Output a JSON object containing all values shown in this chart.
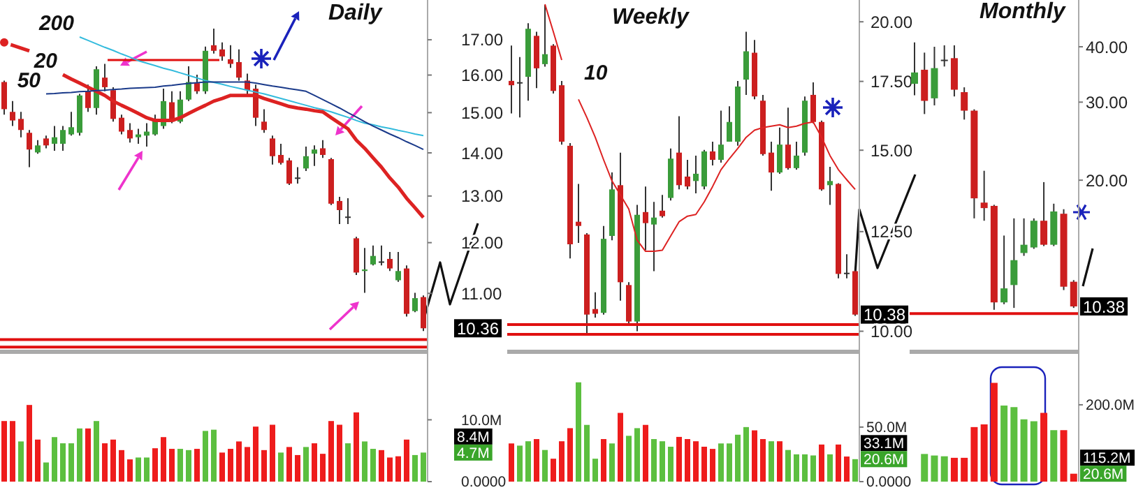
{
  "chart_data": [
    {
      "type": "candlestick",
      "title": "Daily",
      "log": "y",
      "tick_labels": "y",
      "categories": [
        null,
        null,
        null,
        null,
        null,
        null,
        null,
        null,
        null,
        null,
        null,
        null,
        null,
        null,
        null,
        null,
        null,
        null,
        null,
        null,
        null,
        null,
        null,
        null,
        null,
        null,
        null,
        null,
        null,
        null,
        null,
        null,
        null,
        null,
        null,
        null,
        null,
        null,
        null,
        null,
        null,
        null,
        null,
        null,
        null,
        null,
        null,
        null,
        null,
        null,
        null
      ],
      "ohlc": [
        [
          15.81,
          15.85,
          14.95,
          15.09
        ],
        [
          15.02,
          15.3,
          14.66,
          14.8
        ],
        [
          14.84,
          15.02,
          14.38,
          14.56
        ],
        [
          14.49,
          14.56,
          13.66,
          14.08
        ],
        [
          14.01,
          14.31,
          13.98,
          14.18
        ],
        [
          14.35,
          14.42,
          14.11,
          14.18
        ],
        [
          14.22,
          14.66,
          14.05,
          14.38
        ],
        [
          14.22,
          14.66,
          14.05,
          14.56
        ],
        [
          14.45,
          15.02,
          14.42,
          14.63
        ],
        [
          14.49,
          15.49,
          14.42,
          15.45
        ],
        [
          15.56,
          15.74,
          15.02,
          15.12
        ],
        [
          15.12,
          16.24,
          14.95,
          16.16
        ],
        [
          15.93,
          16.31,
          15.56,
          15.67
        ],
        [
          15.59,
          15.67,
          14.77,
          14.84
        ],
        [
          14.87,
          14.95,
          14.45,
          14.52
        ],
        [
          14.56,
          14.73,
          14.25,
          14.35
        ],
        [
          14.38,
          14.59,
          14.22,
          14.45
        ],
        [
          14.42,
          14.73,
          14.15,
          14.52
        ],
        [
          14.45,
          14.95,
          14.42,
          14.8
        ],
        [
          14.66,
          15.63,
          14.59,
          15.3
        ],
        [
          15.27,
          15.56,
          14.73,
          14.77
        ],
        [
          14.77,
          15.56,
          14.73,
          15.34
        ],
        [
          15.34,
          16.24,
          15.3,
          15.81
        ],
        [
          15.78,
          16.01,
          15.49,
          15.56
        ],
        [
          15.56,
          16.8,
          15.49,
          16.68
        ],
        [
          16.84,
          17.33,
          16.6,
          16.68
        ],
        [
          16.72,
          16.92,
          16.4,
          16.52
        ],
        [
          16.44,
          16.84,
          16.2,
          16.31
        ],
        [
          16.36,
          16.72,
          15.85,
          15.93
        ],
        [
          15.85,
          16.04,
          15.45,
          15.59
        ],
        [
          15.63,
          15.74,
          14.66,
          14.87
        ],
        [
          14.77,
          15.09,
          14.49,
          14.56
        ],
        [
          14.35,
          14.42,
          13.72,
          13.92
        ],
        [
          13.95,
          14.22,
          13.72,
          13.76
        ],
        [
          13.82,
          13.88,
          13.25,
          13.28
        ],
        [
          13.42,
          13.66,
          13.28,
          13.41
        ],
        [
          13.63,
          14.15,
          13.57,
          13.92
        ],
        [
          13.98,
          14.18,
          13.69,
          14.08
        ],
        [
          14.11,
          14.31,
          13.88,
          13.95
        ],
        [
          13.85,
          13.88,
          12.8,
          12.83
        ],
        [
          12.89,
          12.98,
          12.39,
          12.69
        ],
        [
          12.55,
          12.95,
          12.39,
          12.54
        ],
        [
          12.09,
          12.12,
          11.35,
          11.4
        ],
        [
          11.43,
          11.89,
          11.01,
          11.46
        ],
        [
          11.56,
          11.94,
          11.54,
          11.73
        ],
        [
          11.62,
          11.94,
          11.54,
          11.62
        ],
        [
          11.67,
          11.81,
          11.43,
          11.48
        ],
        [
          11.25,
          11.81,
          11.22,
          11.43
        ],
        [
          11.48,
          11.54,
          10.57,
          10.62
        ],
        [
          10.67,
          11.01,
          10.65,
          10.91
        ],
        [
          10.93,
          10.96,
          10.31,
          10.36
        ]
      ],
      "colors": [
        "#cc1f1f",
        "#cc1f1f",
        "#cc1f1f",
        "#cc1f1f",
        "#3a9c3a",
        "#cc1f1f",
        "#3a9c3a",
        "#3a9c3a",
        "#3a9c3a",
        "#3a9c3a",
        "#cc1f1f",
        "#3a9c3a",
        "#cc1f1f",
        "#cc1f1f",
        "#cc1f1f",
        "#cc1f1f",
        "#3a9c3a",
        "#3a9c3a",
        "#3a9c3a",
        "#3a9c3a",
        "#cc1f1f",
        "#3a9c3a",
        "#3a9c3a",
        "#cc1f1f",
        "#3a9c3a",
        "#cc1f1f",
        "#cc1f1f",
        "#cc1f1f",
        "#cc1f1f",
        "#cc1f1f",
        "#cc1f1f",
        "#cc1f1f",
        "#cc1f1f",
        "#cc1f1f",
        "#cc1f1f",
        "#333333",
        "#3a9c3a",
        "#3a9c3a",
        "#cc1f1f",
        "#cc1f1f",
        "#cc1f1f",
        "#333333",
        "#cc1f1f",
        "#3a9c3a",
        "#3a9c3a",
        "#333333",
        "#cc1f1f",
        "#3a9c3a",
        "#cc1f1f",
        "#3a9c3a",
        "#cc1f1f"
      ],
      "series": [
        {
          "type": "line",
          "name": "200",
          "color": "#33bbdd",
          "values": [
            null,
            null,
            null,
            null,
            null,
            null,
            null,
            null,
            null,
            17.08,
            16.98,
            16.88,
            16.78,
            16.69,
            16.59,
            16.5,
            16.4,
            16.33,
            16.26,
            16.19,
            16.13,
            16.06,
            15.99,
            15.92,
            15.85,
            15.8,
            15.75,
            15.69,
            15.64,
            15.59,
            15.54,
            15.49,
            15.43,
            15.37,
            15.31,
            15.25,
            15.19,
            15.13,
            15.08,
            15.02,
            14.95,
            14.88,
            14.8,
            14.73,
            14.69,
            14.64,
            14.6,
            14.55,
            14.51,
            14.46,
            14.42
          ]
        },
        {
          "type": "line",
          "name": "20",
          "color": "#dd2222",
          "values": [
            16.92,
            16.84,
            16.76,
            16.68,
            null,
            null,
            null,
            16.01,
            15.89,
            15.78,
            15.67,
            15.56,
            15.45,
            15.3,
            15.19,
            15.09,
            14.98,
            14.87,
            14.8,
            14.8,
            14.8,
            14.87,
            14.98,
            15.09,
            15.19,
            15.3,
            15.37,
            15.45,
            15.45,
            15.45,
            15.45,
            15.37,
            15.3,
            15.23,
            15.16,
            15.12,
            15.09,
            15.05,
            15.02,
            14.87,
            14.73,
            14.59,
            14.31,
            14.11,
            13.88,
            13.66,
            13.41,
            13.2,
            12.95,
            12.74,
            12.53
          ]
        },
        {
          "type": "line",
          "name": "50",
          "color": "#1a3a8a",
          "values": [
            null,
            null,
            null,
            null,
            null,
            15.49,
            15.5,
            15.52,
            15.53,
            15.55,
            15.56,
            15.58,
            15.59,
            15.61,
            15.62,
            15.64,
            15.65,
            15.66,
            15.67,
            15.7,
            15.72,
            15.75,
            15.77,
            15.79,
            15.81,
            15.81,
            15.81,
            15.81,
            15.81,
            15.81,
            15.78,
            15.74,
            15.7,
            15.67,
            15.63,
            15.6,
            15.56,
            15.45,
            15.34,
            15.23,
            15.12,
            15.0,
            14.89,
            14.77,
            14.66,
            14.56,
            14.46,
            14.37,
            14.27,
            14.18,
            14.08
          ]
        }
      ],
      "ylim": [
        9.95,
        18.2
      ],
      "yticks": [
        {
          "value": 11,
          "label": "11.00"
        },
        {
          "value": 12,
          "label": "12.00"
        },
        {
          "value": 13,
          "label": "13.00"
        },
        {
          "value": 14,
          "label": "14.00"
        },
        {
          "value": 15,
          "label": "15.00"
        },
        {
          "value": 16,
          "label": "16.00"
        },
        {
          "value": 17,
          "label": "17.00"
        }
      ],
      "ref_lines": [
        {
          "axis": "y",
          "value": 10.16,
          "color": "#e01010"
        },
        {
          "axis": "y",
          "value": 10.03,
          "color": "#e01010"
        }
      ],
      "annotations": [
        "10.36"
      ]
    },
    {
      "type": "candlestick",
      "title": "Weekly",
      "log": "y",
      "tick_labels": "y",
      "categories": [
        null,
        null,
        null,
        null,
        null,
        null,
        null,
        null,
        null,
        null,
        null,
        null,
        null,
        null,
        null,
        null,
        null,
        null,
        null,
        null,
        null,
        null,
        null,
        null,
        null,
        null,
        null,
        null,
        null,
        null,
        null,
        null,
        null,
        null,
        null,
        null,
        null,
        null,
        null,
        null,
        null,
        null
      ],
      "ohlc": [
        [
          17.52,
          18.96,
          16.29,
          17.35
        ],
        [
          17.47,
          18.48,
          16.14,
          17.46
        ],
        [
          17.68,
          19.94,
          16.76,
          19.69
        ],
        [
          19.38,
          19.56,
          17.24,
          18.02
        ],
        [
          18.19,
          20.77,
          18.09,
          18.6
        ],
        [
          18.96,
          19.02,
          17.03,
          17.13
        ],
        [
          17.35,
          17.52,
          15.19,
          15.29
        ],
        [
          15.15,
          15.24,
          11.77,
          12.15
        ],
        [
          12.78,
          13.91,
          12.19,
          12.66
        ],
        [
          12.42,
          12.46,
          9.9,
          10.38
        ],
        [
          10.51,
          10.91,
          10.31,
          10.4
        ],
        [
          10.42,
          12.66,
          10.38,
          12.3
        ],
        [
          12.38,
          14.27,
          12.26,
          13.74
        ],
        [
          13.87,
          14.92,
          10.71,
          11.16
        ],
        [
          11.09,
          11.16,
          10.18,
          10.22
        ],
        [
          10.22,
          13.27,
          10.0,
          12.98
        ],
        [
          13.06,
          13.83,
          11.99,
          12.74
        ],
        [
          12.7,
          13.36,
          11.44,
          12.9
        ],
        [
          13.1,
          13.57,
          12.9,
          12.94
        ],
        [
          13.48,
          15.06,
          13.4,
          14.72
        ],
        [
          14.92,
          16.19,
          13.74,
          13.87
        ],
        [
          14.14,
          14.68,
          13.74,
          13.83
        ],
        [
          14.0,
          14.82,
          13.62,
          14.23
        ],
        [
          13.83,
          15.01,
          13.74,
          14.96
        ],
        [
          14.96,
          15.29,
          14.5,
          14.68
        ],
        [
          14.68,
          16.39,
          14.59,
          15.19
        ],
        [
          15.29,
          16.55,
          15.29,
          15.98
        ],
        [
          15.29,
          17.52,
          15.15,
          17.3
        ],
        [
          17.57,
          19.56,
          16.98,
          18.72
        ],
        [
          18.66,
          19.2,
          16.81,
          16.92
        ],
        [
          16.76,
          16.98,
          14.82,
          14.87
        ],
        [
          14.92,
          15.29,
          13.7,
          14.27
        ],
        [
          14.27,
          15.78,
          14.23,
          15.19
        ],
        [
          15.19,
          16.5,
          14.36,
          14.41
        ],
        [
          14.41,
          15.29,
          14.36,
          14.82
        ],
        [
          14.92,
          16.92,
          14.82,
          16.76
        ],
        [
          16.98,
          17.46,
          15.93,
          15.98
        ],
        [
          15.98,
          16.03,
          13.7,
          13.74
        ],
        [
          13.87,
          14.45,
          13.27,
          14.0
        ],
        [
          13.91,
          13.93,
          11.26,
          11.37
        ],
        [
          11.4,
          11.88,
          11.26,
          11.39
        ],
        [
          11.44,
          11.46,
          10.35,
          10.38
        ]
      ],
      "colors": [
        "#cc1f1f",
        "#333333",
        "#3a9c3a",
        "#cc1f1f",
        "#3a9c3a",
        "#cc1f1f",
        "#cc1f1f",
        "#cc1f1f",
        "#cc1f1f",
        "#cc1f1f",
        "#cc1f1f",
        "#3a9c3a",
        "#3a9c3a",
        "#cc1f1f",
        "#cc1f1f",
        "#3a9c3a",
        "#cc1f1f",
        "#3a9c3a",
        "#cc1f1f",
        "#3a9c3a",
        "#cc1f1f",
        "#cc1f1f",
        "#3a9c3a",
        "#3a9c3a",
        "#cc1f1f",
        "#3a9c3a",
        "#3a9c3a",
        "#3a9c3a",
        "#3a9c3a",
        "#cc1f1f",
        "#cc1f1f",
        "#cc1f1f",
        "#3a9c3a",
        "#cc1f1f",
        "#3a9c3a",
        "#3a9c3a",
        "#cc1f1f",
        "#cc1f1f",
        "#3a9c3a",
        "#cc1f1f",
        "#333333",
        "#cc1f1f"
      ],
      "series": [
        {
          "type": "line",
          "name": "10",
          "color": "#dd2222",
          "values": [
            null,
            null,
            null,
            null,
            20.8,
            19.56,
            18.36,
            null,
            16.81,
            16.14,
            15.44,
            14.68,
            14.0,
            13.57,
            13.15,
            12.26,
            11.96,
            11.96,
            11.99,
            12.38,
            12.78,
            12.94,
            12.99,
            13.36,
            13.83,
            14.36,
            14.72,
            15.06,
            15.44,
            15.69,
            15.78,
            15.83,
            15.88,
            15.78,
            15.83,
            15.93,
            15.98,
            15.44,
            14.82,
            14.36,
            14.04,
            13.74
          ]
        }
      ],
      "ylim": [
        9.55,
        21
      ],
      "yticks": [
        {
          "value": 10,
          "label": "10.00"
        },
        {
          "value": 12.5,
          "label": "12.50"
        },
        {
          "value": 15,
          "label": "15.00"
        },
        {
          "value": 17.5,
          "label": "17.50"
        },
        {
          "value": 20,
          "label": "20.00"
        }
      ],
      "ref_lines": [
        {
          "axis": "y",
          "value": 10.15,
          "color": "#e01010"
        },
        {
          "axis": "y",
          "value": 9.93,
          "color": "#e01010"
        }
      ],
      "annotations": [
        "10.38"
      ]
    },
    {
      "type": "candlestick",
      "title": "Monthly",
      "log": "y",
      "tick_labels": "y",
      "categories": [
        null,
        null,
        null,
        null,
        null,
        null,
        null,
        null,
        null,
        null,
        null,
        null,
        null,
        null,
        null,
        null,
        null
      ],
      "ohlc": [
        [
          33.0,
          40.9,
          31.1,
          35.0
        ],
        [
          35.5,
          38.8,
          28.2,
          30.2
        ],
        [
          30.6,
          40.0,
          29.5,
          35.8
        ],
        [
          37.3,
          40.3,
          36.1,
          37.4
        ],
        [
          37.7,
          40.3,
          30.9,
          32.0
        ],
        [
          31.6,
          32.4,
          27.4,
          28.7
        ],
        [
          28.7,
          28.9,
          16.4,
          18.2
        ],
        [
          17.8,
          21.0,
          16.2,
          17.3
        ],
        [
          17.5,
          17.6,
          10.2,
          10.6
        ],
        [
          10.6,
          15.0,
          10.5,
          11.4
        ],
        [
          11.6,
          16.4,
          10.3,
          13.2
        ],
        [
          13.7,
          16.4,
          13.5,
          14.3
        ],
        [
          14.1,
          16.4,
          14.0,
          16.2
        ],
        [
          16.2,
          19.8,
          14.2,
          14.3
        ],
        [
          14.3,
          17.7,
          14.2,
          17.0
        ],
        [
          16.8,
          17.2,
          11.3,
          11.5
        ],
        [
          11.8,
          11.9,
          10.3,
          10.38
        ]
      ],
      "colors": [
        "#3a9c3a",
        "#cc1f1f",
        "#3a9c3a",
        "#333333",
        "#cc1f1f",
        "#cc1f1f",
        "#cc1f1f",
        "#cc1f1f",
        "#cc1f1f",
        "#3a9c3a",
        "#3a9c3a",
        "#3a9c3a",
        "#3a9c3a",
        "#cc1f1f",
        "#3a9c3a",
        "#cc1f1f",
        "#cc1f1f"
      ],
      "ylim": [
        8.2,
        51
      ],
      "yticks": [
        {
          "value": 20,
          "label": "20.00"
        },
        {
          "value": 30,
          "label": "30.00"
        },
        {
          "value": 40,
          "label": "40.00"
        }
      ],
      "ref_lines": [
        {
          "axis": "y",
          "value": 10.0,
          "color": "#e01010"
        }
      ],
      "annotations": [
        "10.38"
      ]
    },
    {
      "type": "bar",
      "tick_labels": "y",
      "categories": [
        null,
        null,
        null,
        null,
        null,
        null,
        null,
        null,
        null,
        null,
        null,
        null,
        null,
        null,
        null,
        null,
        null,
        null,
        null,
        null,
        null,
        null,
        null,
        null,
        null,
        null,
        null,
        null,
        null,
        null,
        null,
        null,
        null,
        null,
        null,
        null,
        null,
        null,
        null,
        null,
        null,
        null,
        null,
        null,
        null,
        null,
        null,
        null,
        null,
        null,
        null
      ],
      "values": [
        9.8,
        9.8,
        6.5,
        12.4,
        6.8,
        3.1,
        7.2,
        6.2,
        6.2,
        8.6,
        8.6,
        9.8,
        6.2,
        6.8,
        5.1,
        3.6,
        3.9,
        3.9,
        5.4,
        7.2,
        5.3,
        5.3,
        5.1,
        5.3,
        8.2,
        8.4,
        4.7,
        5.3,
        6.5,
        5.6,
        8.9,
        5.1,
        9.2,
        4.7,
        5.6,
        4.3,
        5.6,
        6.2,
        4.5,
        9.8,
        9.2,
        6.2,
        11.2,
        6.5,
        5.3,
        5.1,
        3.9,
        4.1,
        6.8,
        4.3,
        4.7
      ],
      "colors": [
        "#ee1c1c",
        "#ee1c1c",
        "#5cbf3f",
        "#ee1c1c",
        "#ee1c1c",
        "#5cbf3f",
        "#5cbf3f",
        "#5cbf3f",
        "#5cbf3f",
        "#5cbf3f",
        "#ee1c1c",
        "#5cbf3f",
        "#ee1c1c",
        "#ee1c1c",
        "#ee1c1c",
        "#ee1c1c",
        "#5cbf3f",
        "#5cbf3f",
        "#ee1c1c",
        "#ee1c1c",
        "#ee1c1c",
        "#5cbf3f",
        "#5cbf3f",
        "#ee1c1c",
        "#5cbf3f",
        "#5cbf3f",
        "#ee1c1c",
        "#ee1c1c",
        "#ee1c1c",
        "#ee1c1c",
        "#ee1c1c",
        "#ee1c1c",
        "#ee1c1c",
        "#5cbf3f",
        "#ee1c1c",
        "#ee1c1c",
        "#5cbf3f",
        "#ee1c1c",
        "#ee1c1c",
        "#ee1c1c",
        "#ee1c1c",
        "#5cbf3f",
        "#ee1c1c",
        "#5cbf3f",
        "#5cbf3f",
        "#ee1c1c",
        "#ee1c1c",
        "#ee1c1c",
        "#ee1c1c",
        "#5cbf3f",
        "#5cbf3f"
      ],
      "ylim": [
        0,
        21
      ],
      "yticks": [
        {
          "value": 0,
          "label": "0.0000"
        },
        {
          "value": 10,
          "label": "10.0M"
        }
      ],
      "annotations": [
        "8.4M",
        "4.7M"
      ]
    },
    {
      "type": "bar",
      "tick_labels": "y",
      "categories": [
        null,
        null,
        null,
        null,
        null,
        null,
        null,
        null,
        null,
        null,
        null,
        null,
        null,
        null,
        null,
        null,
        null,
        null,
        null,
        null,
        null,
        null,
        null,
        null,
        null,
        null,
        null,
        null,
        null,
        null,
        null,
        null,
        null,
        null,
        null,
        null,
        null,
        null,
        null,
        null,
        null,
        null
      ],
      "values": [
        35,
        33,
        37,
        39,
        29,
        21,
        37,
        49,
        91,
        52,
        21,
        39,
        35,
        63,
        42,
        49,
        52,
        39,
        37,
        32,
        41,
        39,
        37,
        32,
        30,
        35,
        35,
        43,
        50,
        47,
        39,
        37,
        37,
        29,
        25,
        25,
        24,
        34,
        25,
        34,
        23,
        20.6
      ],
      "colors": [
        "#ee1c1c",
        "#5cbf3f",
        "#5cbf3f",
        "#ee1c1c",
        "#5cbf3f",
        "#ee1c1c",
        "#ee1c1c",
        "#ee1c1c",
        "#5cbf3f",
        "#5cbf3f",
        "#5cbf3f",
        "#ee1c1c",
        "#5cbf3f",
        "#ee1c1c",
        "#5cbf3f",
        "#5cbf3f",
        "#ee1c1c",
        "#5cbf3f",
        "#5cbf3f",
        "#5cbf3f",
        "#ee1c1c",
        "#ee1c1c",
        "#ee1c1c",
        "#ee1c1c",
        "#ee1c1c",
        "#5cbf3f",
        "#5cbf3f",
        "#5cbf3f",
        "#5cbf3f",
        "#ee1c1c",
        "#ee1c1c",
        "#5cbf3f",
        "#ee1c1c",
        "#5cbf3f",
        "#5cbf3f",
        "#5cbf3f",
        "#5cbf3f",
        "#ee1c1c",
        "#5cbf3f",
        "#ee1c1c",
        "#ee1c1c",
        "#5cbf3f"
      ],
      "ylim": [
        0,
        119
      ],
      "yticks": [
        {
          "value": 0,
          "label": "0.0000"
        },
        {
          "value": 50,
          "label": "50.0M"
        }
      ],
      "annotations": [
        "33.1M",
        "20.6M"
      ]
    },
    {
      "type": "bar",
      "tick_labels": "y",
      "categories": [
        null,
        null,
        null,
        null,
        null,
        null,
        null,
        null,
        null,
        null,
        null,
        null,
        null,
        null,
        null,
        null,
        null
      ],
      "values": [
        null,
        72,
        68,
        66,
        62,
        62,
        142,
        149,
        257,
        198,
        194,
        162,
        157,
        179,
        134,
        134,
        20.6
      ],
      "colors": [
        "#5cbf3f",
        "#5cbf3f",
        "#5cbf3f",
        "#5cbf3f",
        "#ee1c1c",
        "#ee1c1c",
        "#ee1c1c",
        "#ee1c1c",
        "#ee1c1c",
        "#5cbf3f",
        "#5cbf3f",
        "#5cbf3f",
        "#5cbf3f",
        "#ee1c1c",
        "#5cbf3f",
        "#ee1c1c",
        "#ee1c1c"
      ],
      "ylim": [
        0,
        338
      ],
      "yticks": [
        {
          "value": 200,
          "label": "200.0M"
        }
      ],
      "annotations": [
        "115.2M",
        "20.6M"
      ]
    }
  ]
}
